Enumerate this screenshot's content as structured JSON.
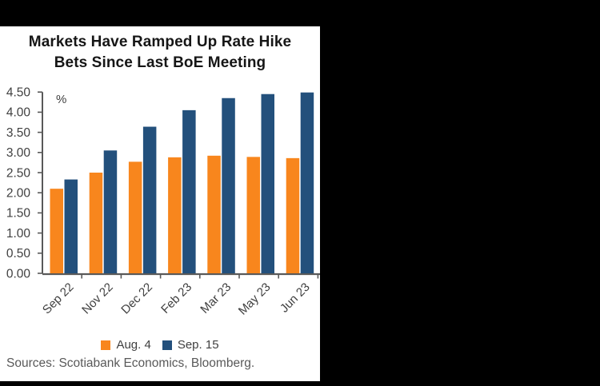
{
  "card": {
    "title_line1": "Markets Have Ramped Up Rate Hike",
    "title_line2": "Bets Since Last BoE Meeting",
    "sources": "Sources: Scotiabank Economics, Bloomberg."
  },
  "chart_data": {
    "type": "bar",
    "title": "Markets Have Ramped Up Rate Hike Bets Since Last BoE Meeting",
    "unit_label": "%",
    "categories": [
      "Sep 22",
      "Nov 22",
      "Dec 22",
      "Feb 23",
      "Mar 23",
      "May 23",
      "Jun 23"
    ],
    "series": [
      {
        "name": "Aug. 4",
        "color": "#F8861D",
        "values": [
          2.1,
          2.5,
          2.77,
          2.88,
          2.92,
          2.89,
          2.86
        ]
      },
      {
        "name": "Sep. 15",
        "color": "#23507C",
        "values": [
          2.33,
          3.05,
          3.64,
          4.05,
          4.35,
          4.45,
          4.49
        ]
      }
    ],
    "xlabel": "",
    "ylabel": "%",
    "ylim": [
      0,
      4.5
    ],
    "ytick_step": 0.5,
    "ytick_decimals": 2,
    "grid": false,
    "legend_position": "bottom",
    "colors": {
      "axis": "#595959",
      "tick_label": "#404040",
      "card_background": "#FFFFFF",
      "page_background": "#000000"
    }
  }
}
